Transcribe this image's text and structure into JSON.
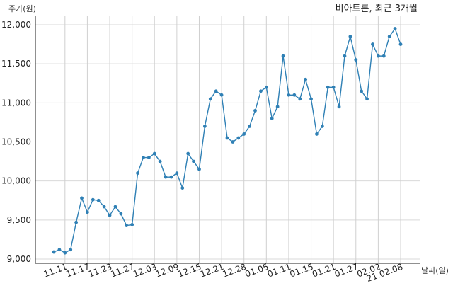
{
  "chart_data": {
    "type": "line",
    "title": "비아트론, 최근 3개월",
    "ylabel": "주가(원)",
    "xlabel": "날짜(일)",
    "ylim": [
      9000,
      12000
    ],
    "y_ticks": [
      "9,000",
      "9,500",
      "10,000",
      "10,500",
      "11,000",
      "11,500",
      "12,000"
    ],
    "y_tick_values": [
      9000,
      9500,
      10000,
      10500,
      11000,
      11500,
      12000
    ],
    "x_tick_labels": [
      "11.11",
      "11.17",
      "11.23",
      "11.27",
      "12.03",
      "12.09",
      "12.15",
      "12.21",
      "12.28",
      "01.05",
      "01.11",
      "01.15",
      "01.21",
      "01.27",
      "02.02",
      "21.02.08"
    ],
    "x_tick_indices": [
      2,
      6,
      10,
      14,
      18,
      22,
      26,
      30,
      34,
      38,
      42,
      46,
      50,
      54,
      58,
      62
    ],
    "grid": "vertical",
    "line_color": "#2f80b5",
    "series": [
      {
        "values": [
          9090,
          9120,
          9080,
          9120,
          9470,
          9780,
          9600,
          9760,
          9750,
          9670,
          9560,
          9670,
          9580,
          9430,
          9440,
          10100,
          10300,
          10300,
          10350,
          10250,
          10050,
          10050,
          10100,
          9910,
          10350,
          10250,
          10150,
          10700,
          11050,
          11150,
          11100,
          10550,
          10500,
          10550,
          10600,
          10700,
          10900,
          11150,
          11200,
          10800,
          10950,
          11600,
          11100,
          11100,
          11050,
          11300,
          11050,
          10600,
          10700,
          11200,
          11200,
          10950,
          11600,
          11850,
          11550,
          11150,
          11050,
          11750,
          11600,
          11600,
          11850,
          11950,
          11750
        ]
      }
    ]
  }
}
